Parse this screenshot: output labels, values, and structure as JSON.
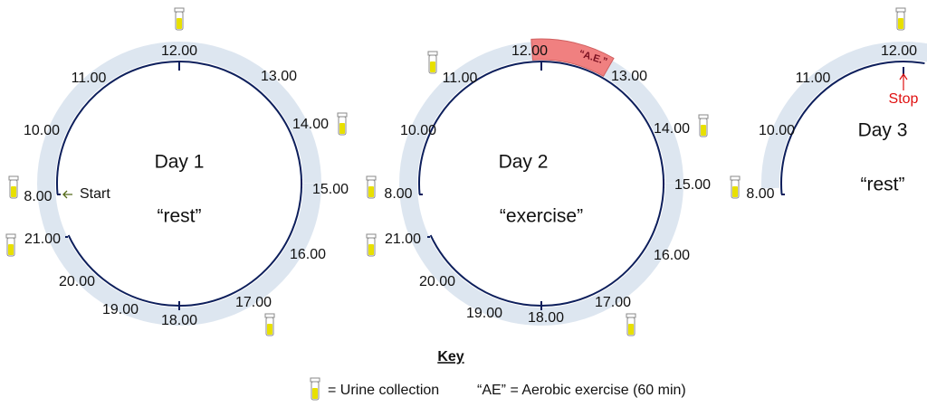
{
  "days": [
    {
      "title": "Day 1",
      "condition": "“rest”",
      "marker": "Start",
      "times": [
        "12.00",
        "13.00",
        "14.00",
        "15.00",
        "16.00",
        "17.00",
        "18.00",
        "19.00",
        "20.00",
        "21.00",
        "8.00",
        "10.00",
        "11.00"
      ]
    },
    {
      "title": "Day 2",
      "condition": "“exercise”",
      "ae_label": "“A.E.”",
      "times": [
        "12.00",
        "13.00",
        "14.00",
        "15.00",
        "16.00",
        "17.00",
        "18.00",
        "19.00",
        "20.00",
        "21.00",
        "8.00",
        "10.00",
        "11.00"
      ]
    },
    {
      "title": "Day 3",
      "condition": "“rest”",
      "marker": "Stop",
      "times": [
        "12.00",
        "11.00",
        "10.00",
        "8.00"
      ]
    }
  ],
  "key": {
    "title": "Key",
    "urine": "= Urine collection",
    "ae": "“AE” = Aerobic exercise (60 min)"
  }
}
